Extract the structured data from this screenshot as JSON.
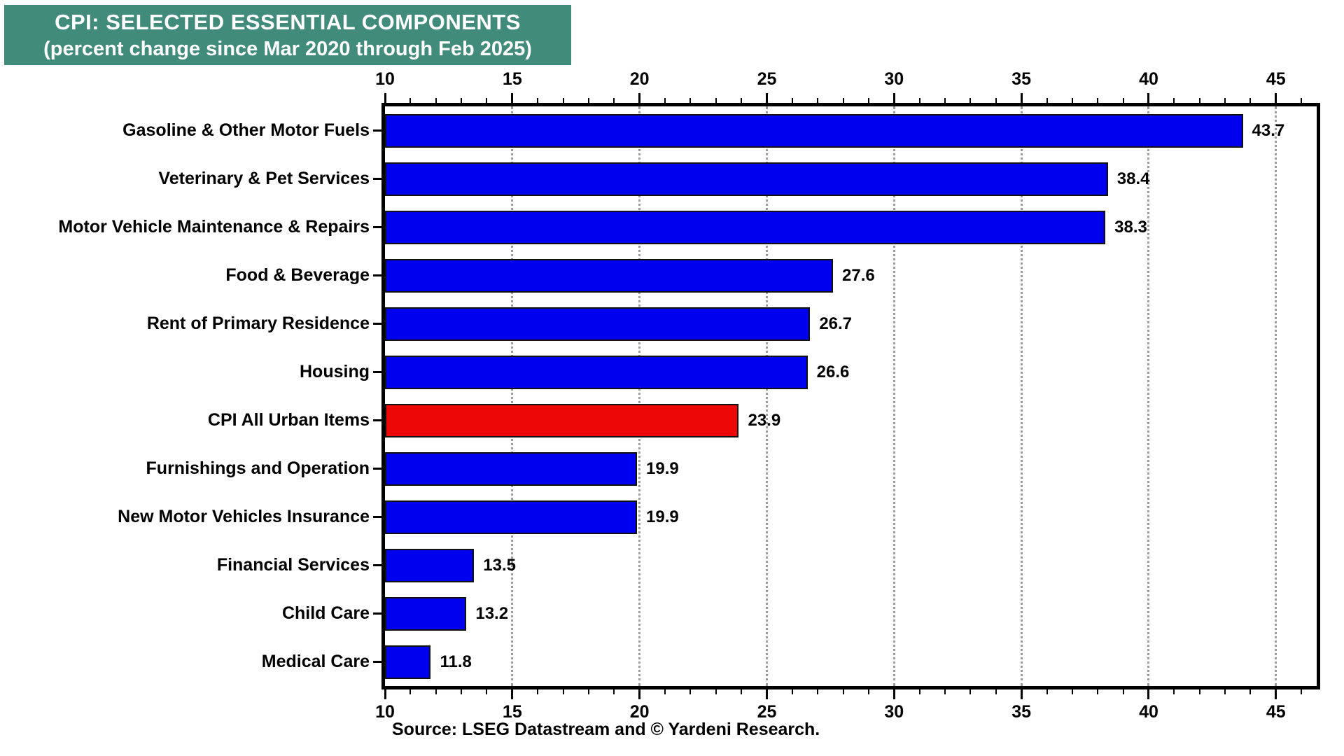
{
  "banner": {
    "title": "CPI: SELECTED ESSENTIAL COMPONENTS",
    "subtitle": "(percent change since Mar 2020 through Feb 2025)",
    "bg_color": "#408B7A",
    "text_color": "#FFFFFF"
  },
  "source": "Source: LSEG Datastream and © Yardeni Research.",
  "chart_data": {
    "type": "bar",
    "orientation": "horizontal",
    "title": "CPI: SELECTED ESSENTIAL COMPONENTS",
    "subtitle": "(percent change since Mar 2020 through Feb 2025)",
    "categories": [
      "Gasoline & Other Motor Fuels",
      "Veterinary & Pet Services",
      "Motor Vehicle Maintenance & Repairs",
      "Food & Beverage",
      "Rent of Primary Residence",
      "Housing",
      "CPI All Urban Items",
      "Furnishings and Operation",
      "New Motor Vehicles Insurance",
      "Financial Services",
      "Child Care",
      "Medical Care"
    ],
    "values": [
      43.7,
      38.4,
      38.3,
      27.6,
      26.7,
      26.6,
      23.9,
      19.9,
      19.9,
      13.5,
      13.2,
      11.8
    ],
    "value_labels": [
      "43.7",
      "38.4",
      "38.3",
      "27.6",
      "26.7",
      "26.6",
      "23.9",
      "19.9",
      "19.9",
      "13.5",
      "13.2",
      "11.8"
    ],
    "highlight_category": "CPI All Urban Items",
    "highlight_index": 6,
    "bar_color": "#0000EE",
    "highlight_color": "#EE0707",
    "grid_color": "#9C9C9C",
    "xlabel": "",
    "ylabel": "",
    "axis": {
      "min": 10,
      "max": 45,
      "max_extent": 46.6,
      "major_step": 5,
      "minor_step": 1,
      "tick_labels": [
        "10",
        "15",
        "20",
        "25",
        "30",
        "35",
        "40",
        "45"
      ],
      "gridlines": [
        15,
        20,
        25,
        30,
        35,
        40,
        45
      ],
      "grid": "dotted-vertical",
      "tick_sides": [
        "top",
        "bottom"
      ]
    },
    "legend": "none"
  }
}
